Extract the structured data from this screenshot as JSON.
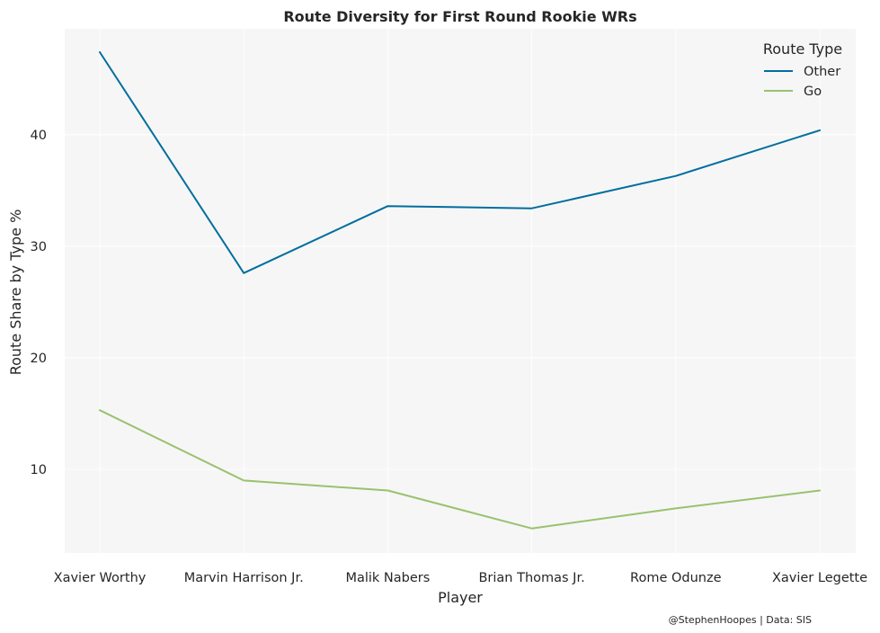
{
  "chart_data": {
    "type": "line",
    "title": "Route Diversity for First Round Rookie WRs",
    "xlabel": "Player",
    "ylabel": "Route Share by Type %",
    "categories": [
      "Xavier Worthy",
      "Marvin Harrison Jr.",
      "Malik Nabers",
      "Brian Thomas Jr.",
      "Rome Odunze",
      "Xavier Legette"
    ],
    "series": [
      {
        "name": "Other",
        "color": "#006e9e",
        "values": [
          47.4,
          27.6,
          33.6,
          33.4,
          36.3,
          40.4
        ]
      },
      {
        "name": "Go",
        "color": "#99c26f",
        "values": [
          15.3,
          9.0,
          8.1,
          4.7,
          6.5,
          8.1
        ]
      }
    ],
    "yticks": [
      10,
      20,
      30,
      40
    ],
    "ytick_labels": [
      "10",
      "20",
      "30",
      "40"
    ],
    "ylim": [
      2.5,
      49.5
    ],
    "grid": true,
    "legend": {
      "title": "Route Type",
      "placement": "top-right"
    },
    "annotation": "@StephenHoopes | Data: SIS"
  }
}
